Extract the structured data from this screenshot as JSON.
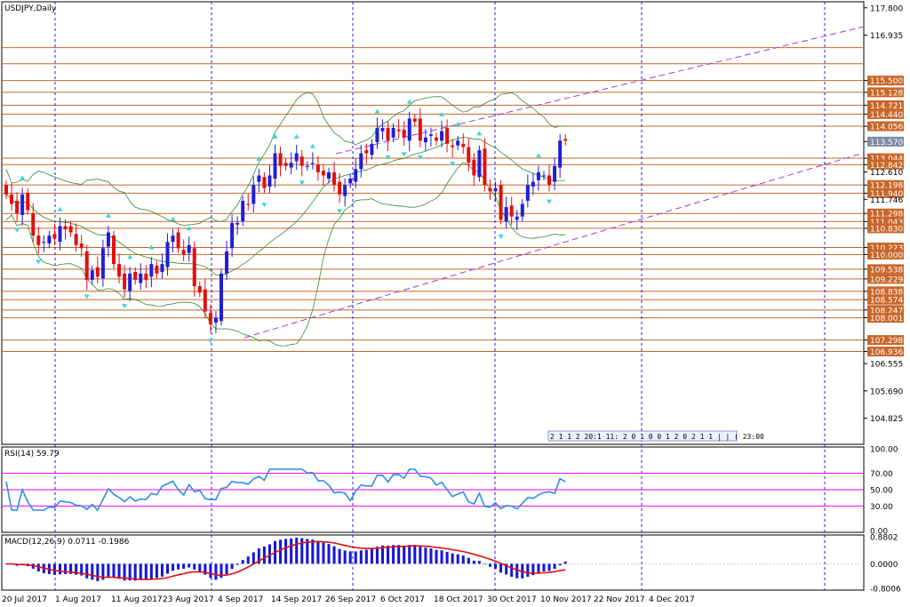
{
  "chart_data": {
    "type": "candlestick",
    "symbol_title": "USDJPY,Daily",
    "ylim": [
      104.0,
      117.99
    ],
    "price_axis_ticks": [
      "117.800",
      "116.935",
      "115.500",
      "115.128",
      "114.721",
      "114.440",
      "114.056",
      "113.570",
      "113.044",
      "112.842",
      "112.610",
      "112.198",
      "111.940",
      "111.746",
      "111.298",
      "111.043",
      "110.830",
      "110.223",
      "110.000",
      "109.538",
      "109.229",
      "108.838",
      "108.574",
      "108.247",
      "108.001",
      "107.298",
      "106.936",
      "106.555",
      "105.690",
      "104.825"
    ],
    "highlighted_prices": [
      "116.538",
      "116.032",
      "115.500",
      "115.128",
      "114.721",
      "114.440",
      "114.056",
      "113.570",
      "113.044",
      "112.842",
      "112.198",
      "111.940",
      "111.298",
      "111.043",
      "110.830",
      "110.223",
      "110.000",
      "109.538",
      "109.229",
      "108.838",
      "108.574",
      "108.247",
      "108.001",
      "107.298",
      "106.936"
    ],
    "current_price_label": "113.570",
    "horizontal_levels": [
      116.538,
      116.032,
      115.5,
      115.128,
      114.721,
      114.44,
      114.056,
      113.044,
      112.842,
      112.198,
      111.94,
      111.298,
      111.043,
      110.83,
      110.223,
      110.0,
      109.538,
      109.229,
      108.838,
      108.574,
      108.247,
      108.001,
      107.298,
      106.936
    ],
    "x_labels": [
      "20 Jul 2017",
      "1 Aug 2017",
      "11 Aug 2017",
      "23 Aug 2017",
      "4 Sep 2017",
      "14 Sep 2017",
      "26 Sep 2017",
      "6 Oct 2017",
      "18 Oct 2017",
      "30 Oct 2017",
      "10 Nov 2017",
      "22 Nov 2017",
      "4 Dec 2017"
    ],
    "close": [
      111.9,
      111.6,
      111.3,
      111.9,
      111.4,
      110.6,
      110.3,
      110.4,
      110.6,
      110.5,
      110.9,
      110.8,
      110.7,
      110.3,
      110.2,
      109.2,
      109.5,
      109.3,
      110.2,
      110.7,
      109.7,
      109.3,
      108.9,
      109.4,
      109.2,
      109.4,
      109.2,
      109.7,
      109.4,
      109.7,
      110.4,
      110.6,
      110.2,
      110.0,
      110.3,
      109.0,
      108.8,
      108.2,
      107.8,
      108.0,
      109.4,
      110.1,
      111.0,
      111.0,
      111.7,
      111.6,
      112.2,
      112.5,
      112.1,
      112.5,
      113.2,
      112.8,
      112.8,
      112.9,
      113.2,
      112.8,
      112.8,
      112.9,
      112.6,
      112.5,
      112.6,
      112.2,
      111.9,
      112.2,
      112.4,
      112.7,
      113.2,
      113.2,
      113.5,
      114.0,
      114.0,
      113.6,
      114.0,
      113.9,
      113.7,
      114.3,
      114.2,
      113.6,
      113.7,
      113.8,
      113.6,
      113.9,
      113.5,
      113.4,
      113.6,
      113.4,
      112.9,
      112.5,
      113.3,
      112.2,
      112.0,
      112.1,
      111.1,
      111.5,
      111.2,
      111.2,
      111.6,
      112.2,
      112.3,
      112.6,
      112.5,
      112.2,
      112.8,
      113.6,
      113.6
    ],
    "rsi": {
      "label": "RSI(14) 59.79",
      "ylim": [
        0,
        100
      ],
      "levels": [
        70,
        50,
        30
      ],
      "ticks": [
        "100.00",
        "70.00",
        "50.00",
        "30.00",
        "0.00"
      ],
      "last": 59.79
    },
    "macd": {
      "label": "MACD(12,26,9) 0.0711 -0.1986",
      "ylim": [
        -0.8006,
        0.8802
      ],
      "ticks": [
        "0.8802",
        "0.0000",
        "-0.8006"
      ],
      "main": 0.0711,
      "signal": -0.1986
    },
    "colors": {
      "bull": "#1f1fd8",
      "bear": "#e01010",
      "levels": "#c8662a",
      "grid": "#1a1aff",
      "channel": "#9b3fd8",
      "bands": "#2e8b2e",
      "rsi_line": "#2b8ee6",
      "rsi_levels": "#ff00ff",
      "macd_hist": "#1515d8",
      "macd_signal": "#e01010",
      "arrows": "#38d9d9"
    },
    "time_box_text": "2 1 1 2 20:1 11: 2 0 1 0 0 1 2 0 2 1 1 | | ( 23:00"
  }
}
